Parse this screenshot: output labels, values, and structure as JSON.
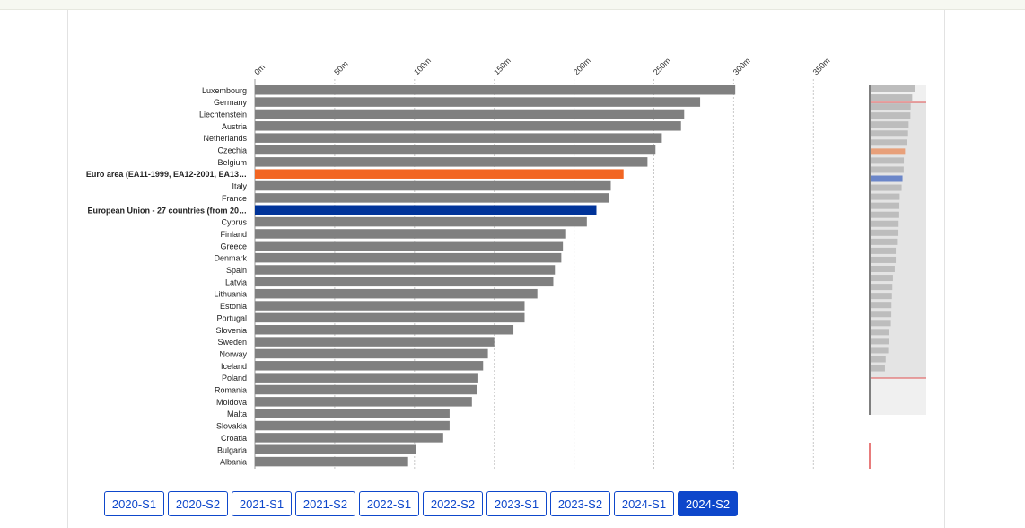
{
  "chart_data": {
    "type": "bar",
    "orientation": "horizontal",
    "title": "",
    "xlabel": "",
    "ylabel": "",
    "xlim": [
      0,
      350
    ],
    "x_ticks": [
      0,
      50,
      100,
      150,
      200,
      250,
      300,
      350
    ],
    "x_tick_labels": [
      "0m",
      "50m",
      "100m",
      "150m",
      "200m",
      "250m",
      "300m",
      "350m"
    ],
    "grid": true,
    "categories": [
      "Luxembourg",
      "Germany",
      "Liechtenstein",
      "Austria",
      "Netherlands",
      "Czechia",
      "Belgium",
      "Euro area (EA11-1999, EA12-2001, EA13…",
      "Italy",
      "France",
      "European Union - 27 countries (from 20…",
      "Cyprus",
      "Finland",
      "Greece",
      "Denmark",
      "Spain",
      "Latvia",
      "Lithuania",
      "Estonia",
      "Portugal",
      "Slovenia",
      "Sweden",
      "Norway",
      "Iceland",
      "Poland",
      "Romania",
      "Moldova",
      "Malta",
      "Slovakia",
      "Croatia",
      "Bulgaria",
      "Albania"
    ],
    "values": [
      301,
      279,
      269,
      267,
      255,
      251,
      246,
      231,
      223,
      222,
      214,
      208,
      195,
      193,
      192,
      188,
      187,
      177,
      169,
      169,
      162,
      150,
      146,
      143,
      140,
      139,
      136,
      122,
      122,
      118,
      101,
      96
    ],
    "highlighted": [
      {
        "category": "Euro area (EA11-1999, EA12-2001, EA13…",
        "color": "#f26522"
      },
      {
        "category": "European Union - 27 countries (from 20…",
        "color": "#003399"
      }
    ],
    "bar_color": "#808080",
    "gridline_color": "#c8c8c8"
  },
  "navigator": {
    "bar_color": "#bdbdbd",
    "window_color": "#e4e4e4",
    "window_border_color": "#e05050"
  },
  "periods": {
    "items": [
      "2020-S1",
      "2020-S2",
      "2021-S1",
      "2021-S2",
      "2022-S1",
      "2022-S2",
      "2023-S1",
      "2023-S2",
      "2024-S1",
      "2024-S2"
    ],
    "active": "2024-S2",
    "active_color": "#0e47cb"
  }
}
